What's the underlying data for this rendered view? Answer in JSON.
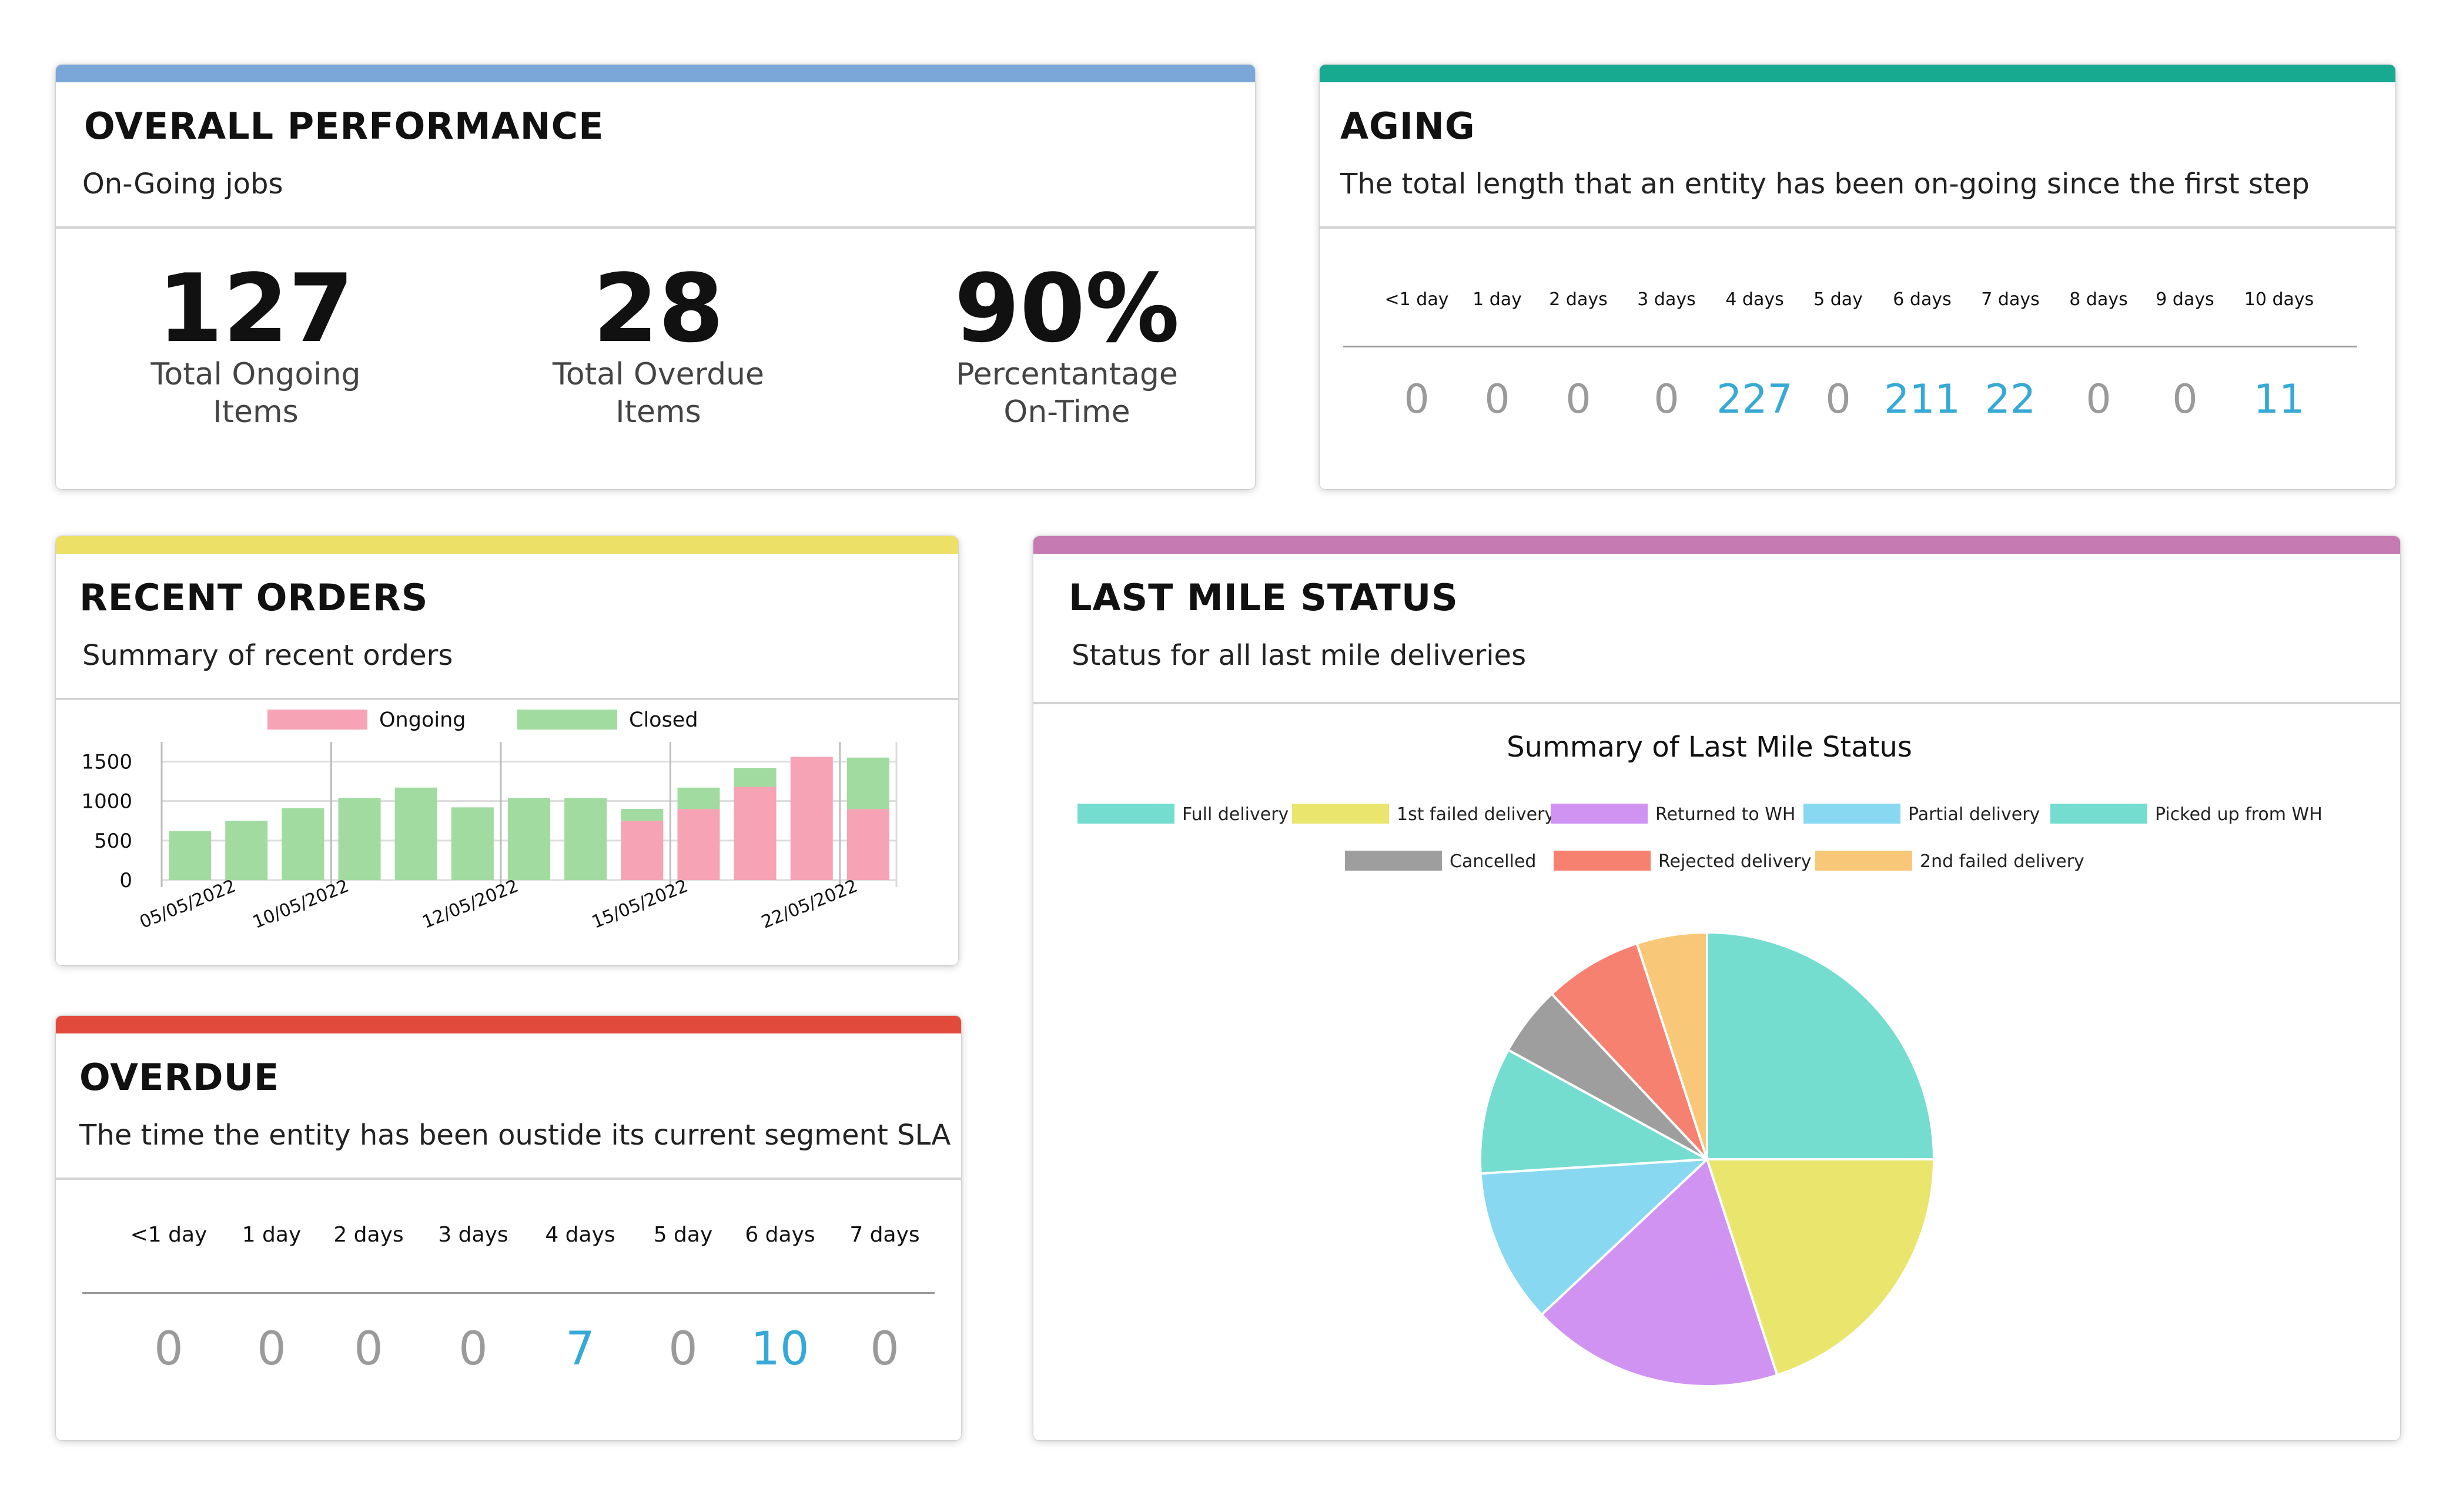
{
  "colors": {
    "performance": "#7aa6d8",
    "aging": "#18a991",
    "recent": "#ede066",
    "overdue": "#e24b3b",
    "lastmile": "#c67ab2",
    "highlight": "#37a9d6",
    "zero": "#9a9a9a",
    "ongoing": "#f5a3b5",
    "closed": "#a1dba0"
  },
  "performance": {
    "title": "OVERALL PERFORMANCE",
    "subtitle": "On-Going jobs",
    "stats": [
      {
        "value": "127",
        "label_line1": "Total Ongoing",
        "label_line2": "Items"
      },
      {
        "value": "28",
        "label_line1": "Total Overdue",
        "label_line2": "Items"
      },
      {
        "value": "90%",
        "label_line1": "Percentantage",
        "label_line2": "On-Time"
      }
    ]
  },
  "aging": {
    "title": "AGING",
    "subtitle": "The total length that an entity has been on-going since the first step",
    "buckets": [
      {
        "label": "<1 day",
        "value": "0",
        "highlight": false
      },
      {
        "label": "1 day",
        "value": "0",
        "highlight": false
      },
      {
        "label": "2 days",
        "value": "0",
        "highlight": false
      },
      {
        "label": "3 days",
        "value": "0",
        "highlight": false
      },
      {
        "label": "4 days",
        "value": "227",
        "highlight": true
      },
      {
        "label": "5 day",
        "value": "0",
        "highlight": false
      },
      {
        "label": "6 days",
        "value": "211",
        "highlight": true
      },
      {
        "label": "7 days",
        "value": "22",
        "highlight": true
      },
      {
        "label": "8 days",
        "value": "0",
        "highlight": false
      },
      {
        "label": "9 days",
        "value": "0",
        "highlight": false
      },
      {
        "label": "10 days",
        "value": "11",
        "highlight": true
      }
    ]
  },
  "recent": {
    "title": "RECENT ORDERS",
    "subtitle": "Summary of recent orders"
  },
  "overdue": {
    "title": "OVERDUE",
    "subtitle": "The time the entity has been oustide its current segment SLA",
    "buckets": [
      {
        "label": "<1 day",
        "value": "0",
        "highlight": false
      },
      {
        "label": "1 day",
        "value": "0",
        "highlight": false
      },
      {
        "label": "2 days",
        "value": "0",
        "highlight": false
      },
      {
        "label": "3 days",
        "value": "0",
        "highlight": false
      },
      {
        "label": "4 days",
        "value": "7",
        "highlight": true
      },
      {
        "label": "5 day",
        "value": "0",
        "highlight": false
      },
      {
        "label": "6 days",
        "value": "10",
        "highlight": true
      },
      {
        "label": "7 days",
        "value": "0",
        "highlight": false
      }
    ]
  },
  "lastmile": {
    "title": "LAST MILE STATUS",
    "subtitle": "Status for all last mile deliveries"
  },
  "chart_data": [
    {
      "type": "bar",
      "stacked": true,
      "title": "",
      "legend_position": "top",
      "xlabel": "",
      "ylabel": "",
      "ylim": [
        0,
        1600
      ],
      "yticks": [
        0,
        500,
        1000,
        1500
      ],
      "categories": [
        "05/05/2022",
        "",
        "10/05/2022",
        "",
        "",
        "12/05/2022",
        "",
        "",
        "15/05/2022",
        "",
        "",
        "22/05/2022",
        ""
      ],
      "series": [
        {
          "name": "Ongoing",
          "color": "#f5a3b5",
          "values": [
            0,
            0,
            0,
            0,
            0,
            0,
            0,
            0,
            750,
            900,
            1180,
            1560,
            900
          ]
        },
        {
          "name": "Closed",
          "color": "#a1dba0",
          "values": [
            620,
            750,
            910,
            1040,
            1170,
            920,
            1040,
            1040,
            150,
            270,
            240,
            0,
            650
          ]
        }
      ]
    },
    {
      "type": "pie",
      "title": "Summary of Last Mile Status",
      "legend_position": "top",
      "labels": [
        "Full delivery",
        "1st failed delivery",
        "Returned to WH",
        "Partial delivery",
        "Picked up from WH",
        "Cancelled",
        "Rejected delivery",
        "2nd failed delivery"
      ],
      "colors": [
        "#74ddd0",
        "#eae66d",
        "#d093f2",
        "#88d8f2",
        "#74ddd0",
        "#9e9e9e",
        "#f68171",
        "#f8c878"
      ],
      "values": [
        25,
        20,
        18,
        11,
        9,
        5,
        7,
        5
      ]
    }
  ]
}
